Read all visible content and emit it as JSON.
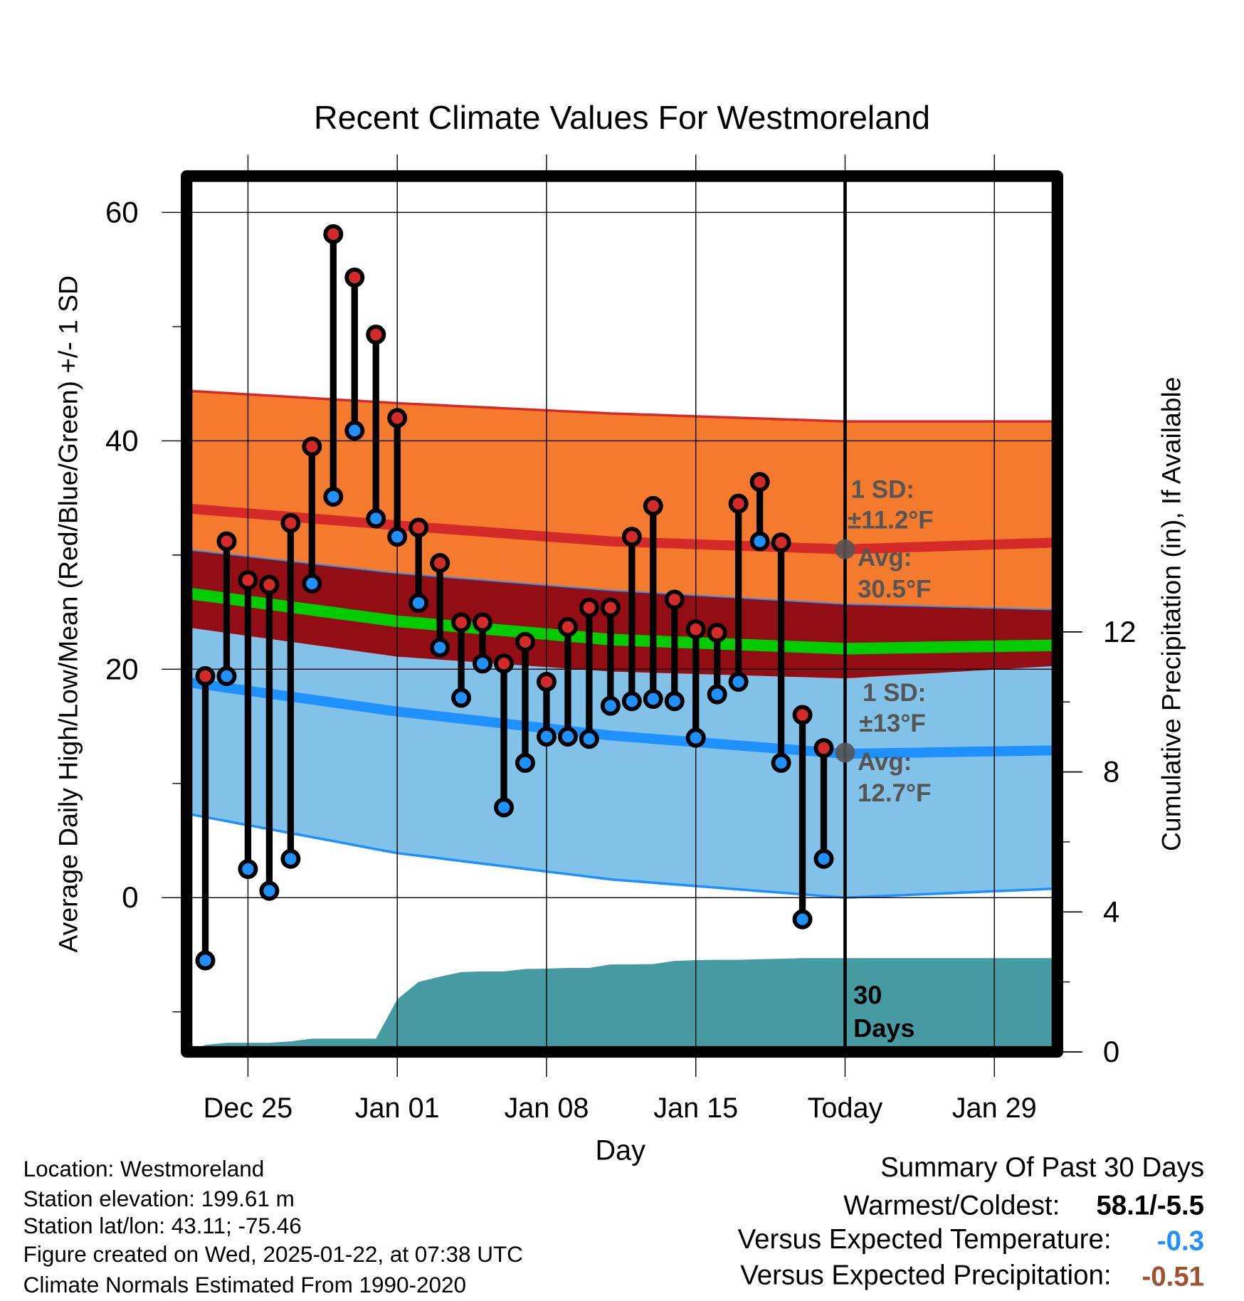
{
  "chart_data": {
    "type": "line",
    "title": "Recent Climate Values For Westmoreland",
    "xlabel": "Day",
    "ylabel": "Average Daily High/Low/Mean (Red/Blue/Green) +/- 1 SD",
    "y2label": "Cumulative Precipitation (in), If Available",
    "ylim": [
      -13.5,
      63.2
    ],
    "y2lim": [
      0,
      25
    ],
    "yticks": [
      0,
      20,
      40,
      60
    ],
    "y2ticks": [
      0,
      4,
      8,
      12
    ],
    "xticks": [
      {
        "day": 0,
        "label": "Dec 25"
      },
      {
        "day": 7,
        "label": "Jan 01"
      },
      {
        "day": 14,
        "label": "Jan 08"
      },
      {
        "day": 21,
        "label": "Jan 15"
      },
      {
        "day": 28,
        "label": "Today"
      },
      {
        "day": 35,
        "label": "Jan 29"
      }
    ],
    "xlim_days_from_dec25": [
      -2.9,
      38
    ],
    "grid": true,
    "observations": {
      "dates": [
        "Dec 23",
        "Dec 24",
        "Dec 25",
        "Dec 26",
        "Dec 27",
        "Dec 28",
        "Dec 29",
        "Dec 30",
        "Dec 31",
        "Jan 01",
        "Jan 02",
        "Jan 03",
        "Jan 04",
        "Jan 05",
        "Jan 06",
        "Jan 07",
        "Jan 08",
        "Jan 09",
        "Jan 10",
        "Jan 11",
        "Jan 12",
        "Jan 13",
        "Jan 14",
        "Jan 15",
        "Jan 16",
        "Jan 17",
        "Jan 18",
        "Jan 19",
        "Jan 20",
        "Jan 21"
      ],
      "high": [
        19.4,
        31.2,
        27.8,
        27.4,
        32.8,
        39.5,
        58.1,
        54.3,
        49.3,
        42.0,
        32.4,
        29.3,
        24.1,
        24.1,
        20.5,
        22.4,
        18.9,
        23.7,
        25.4,
        25.4,
        31.6,
        34.3,
        26.1,
        23.5,
        23.2,
        34.5,
        36.4,
        31.1,
        16.0,
        13.1
      ],
      "low": [
        -5.5,
        19.4,
        2.5,
        0.6,
        3.4,
        27.5,
        35.1,
        40.9,
        33.2,
        31.6,
        25.8,
        21.9,
        17.5,
        20.5,
        7.9,
        11.8,
        14.1,
        14.1,
        13.9,
        16.8,
        17.2,
        17.4,
        17.2,
        14.0,
        17.8,
        18.9,
        31.2,
        11.8,
        -1.9,
        3.4
      ]
    },
    "normals": {
      "days_from_dec25": [
        -3,
        7,
        17,
        28,
        38
      ],
      "high_mean": [
        34.1,
        32.6,
        31.2,
        30.5,
        31.1
      ],
      "high_plus_sd": [
        44.4,
        43.3,
        42.4,
        41.7,
        41.7
      ],
      "high_minus_sd": [
        30.5,
        28.4,
        26.9,
        25.7,
        25.2
      ],
      "mean": [
        26.7,
        24.2,
        22.6,
        21.8,
        22.1
      ],
      "low_mean": [
        18.9,
        16.3,
        14.2,
        12.6,
        12.9
      ],
      "low_plus_sd": [
        23.7,
        21.1,
        19.8,
        19.2,
        20.3
      ],
      "low_minus_sd": [
        7.4,
        3.9,
        1.6,
        0.0,
        0.8
      ]
    },
    "precip_cumulative": {
      "days_from_dec25": [
        -2.9,
        -2,
        -1,
        0,
        1,
        2,
        3,
        4,
        5,
        6,
        7,
        8,
        9,
        10,
        11,
        12,
        13,
        14,
        15,
        16,
        17,
        18,
        19,
        20,
        21,
        22,
        23,
        24,
        25,
        26,
        27,
        28,
        38
      ],
      "values": [
        0,
        0.2,
        0.26,
        0.26,
        0.26,
        0.3,
        0.38,
        0.38,
        0.38,
        0.38,
        1.5,
        2.0,
        2.15,
        2.28,
        2.3,
        2.3,
        2.37,
        2.38,
        2.4,
        2.4,
        2.5,
        2.5,
        2.51,
        2.6,
        2.62,
        2.63,
        2.63,
        2.65,
        2.66,
        2.68,
        2.68,
        2.68,
        2.68
      ]
    },
    "annotations": {
      "high_sd_label": "1 SD:",
      "high_sd_value": "±11.2°F",
      "high_avg_label": "Avg:",
      "high_avg_value": "30.5°F",
      "low_sd_label": "1 SD:",
      "low_sd_value": "±13°F",
      "low_avg_label": "Avg:",
      "low_avg_value": "12.7°F",
      "window_count": "30",
      "window_unit": "Days"
    },
    "colors": {
      "high": "#d42a2a",
      "high_band": "#f47a2e",
      "low": "#1e90ff",
      "low_band": "#82c1e8",
      "overlap": "#920d14",
      "mean": "#00cc00",
      "precip": "#469aa2",
      "annot": "#555555"
    }
  },
  "footer": {
    "location": "Location: Westmoreland",
    "elevation": "Station elevation: 199.61 m",
    "latlon": "Station lat/lon: 43.11; -75.46",
    "created": "Figure created on Wed, 2025-01-22, at 07:38 UTC",
    "normals": "Climate Normals Estimated From 1990-2020"
  },
  "summary": {
    "title": "Summary Of Past 30 Days",
    "warmest_label": "Warmest/Coldest:",
    "warmest_value": "58.1/-5.5",
    "temp_label": "Versus Expected Temperature:",
    "temp_value": "-0.3",
    "temp_color": "#1e90ff",
    "precip_label": "Versus Expected Precipitation:",
    "precip_value": "-0.51",
    "precip_color": "#a0522d"
  }
}
